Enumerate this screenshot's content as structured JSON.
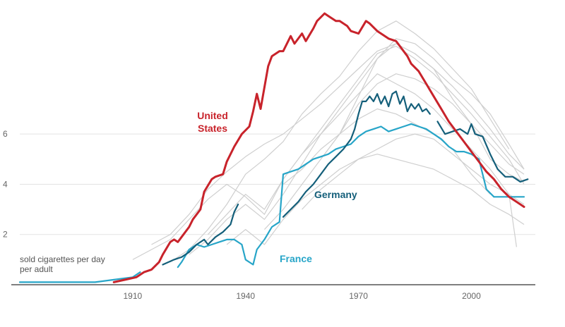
{
  "chart_data": {
    "type": "line",
    "title": "",
    "xlabel": "",
    "ylabel": "sold cigarettes per day per adult",
    "ylabel_lines": [
      "sold cigarettes per day",
      "per adult"
    ],
    "xlim": [
      1880,
      2017
    ],
    "ylim": [
      0,
      11.0
    ],
    "x_ticks": [
      1910,
      1940,
      1970,
      2000
    ],
    "x_tick_labels": [
      "1910",
      "1940",
      "1970",
      "2000"
    ],
    "y_ticks": [
      2,
      4,
      6
    ],
    "y_tick_labels": [
      "2",
      "4",
      "6"
    ],
    "grid": true,
    "colors": {
      "united_states": "#c8232b",
      "germany": "#145f7a",
      "france": "#27a5c8",
      "other_countries": "#cfcfcf",
      "grid": "#e3e3e3",
      "baseline": "#333333"
    },
    "series": [
      {
        "key": "united_states",
        "name": "United States",
        "label_lines": [
          "United",
          "States"
        ],
        "x": [
          1905,
          1908,
          1911,
          1913,
          1915,
          1917,
          1918,
          1920,
          1921,
          1922,
          1923,
          1925,
          1926,
          1928,
          1929,
          1931,
          1932,
          1934,
          1935,
          1937,
          1939,
          1941,
          1942,
          1943,
          1944,
          1946,
          1947,
          1949,
          1950,
          1952,
          1953,
          1955,
          1956,
          1958,
          1959,
          1961,
          1962,
          1964,
          1965,
          1967,
          1968,
          1970,
          1972,
          1973,
          1975,
          1976,
          1978,
          1980,
          1981,
          1983,
          1984,
          1986,
          1988,
          1990,
          1992,
          1994,
          1996,
          1998,
          2000,
          2002,
          2004,
          2006,
          2008,
          2010,
          2012,
          2014
        ],
        "values": [
          0.1,
          0.2,
          0.3,
          0.5,
          0.6,
          0.9,
          1.2,
          1.7,
          1.8,
          1.7,
          1.9,
          2.3,
          2.6,
          3.0,
          3.7,
          4.2,
          4.3,
          4.4,
          4.9,
          5.5,
          6.0,
          6.3,
          6.9,
          7.6,
          7.0,
          8.7,
          9.1,
          9.3,
          9.3,
          9.9,
          9.6,
          10.0,
          9.7,
          10.2,
          10.5,
          10.8,
          10.7,
          10.5,
          10.5,
          10.3,
          10.1,
          10.0,
          10.5,
          10.4,
          10.1,
          10.0,
          9.8,
          9.7,
          9.5,
          9.1,
          8.8,
          8.5,
          8.0,
          7.5,
          7.0,
          6.5,
          6.1,
          5.7,
          5.3,
          4.9,
          4.5,
          4.2,
          3.8,
          3.5,
          3.3,
          3.1
        ]
      },
      {
        "key": "germany",
        "name": "Germany",
        "label_lines": [
          "Germany"
        ],
        "segments": [
          {
            "x": [
              1918,
              1921,
              1923,
              1925,
              1927,
              1929,
              1930,
              1932,
              1934,
              1936,
              1937,
              1938
            ],
            "values": [
              0.8,
              1.0,
              1.1,
              1.3,
              1.6,
              1.8,
              1.6,
              1.9,
              2.1,
              2.4,
              2.9,
              3.2
            ]
          },
          {
            "x": [
              1950,
              1952,
              1954,
              1956,
              1958,
              1960,
              1962,
              1964,
              1966,
              1967,
              1968,
              1969,
              1970,
              1971,
              1972,
              1973,
              1974,
              1975,
              1976,
              1977,
              1978,
              1979,
              1980,
              1981,
              1982,
              1983,
              1984,
              1985,
              1986,
              1987,
              1988,
              1989
            ],
            "values": [
              2.7,
              3.0,
              3.3,
              3.7,
              4.0,
              4.4,
              4.8,
              5.1,
              5.4,
              5.6,
              5.8,
              6.2,
              6.8,
              7.3,
              7.3,
              7.5,
              7.3,
              7.6,
              7.2,
              7.5,
              7.1,
              7.6,
              7.7,
              7.2,
              7.5,
              6.9,
              7.2,
              7.0,
              7.2,
              6.9,
              7.0,
              6.8
            ]
          },
          {
            "x": [
              1991,
              1993,
              1995,
              1997,
              1999,
              2000,
              2001,
              2003,
              2005,
              2007,
              2009,
              2011,
              2013,
              2015
            ],
            "values": [
              6.5,
              6.0,
              6.1,
              6.2,
              6.0,
              6.4,
              6.0,
              5.9,
              5.2,
              4.6,
              4.3,
              4.3,
              4.1,
              4.2
            ]
          }
        ]
      },
      {
        "key": "france",
        "name": "France",
        "label_lines": [
          "France"
        ],
        "segments": [
          {
            "x": [
              1880,
              1900,
              1905,
              1910,
              1912
            ],
            "values": [
              0.1,
              0.1,
              0.2,
              0.3,
              0.5
            ]
          },
          {
            "x": [
              1922,
              1923,
              1925,
              1927,
              1929,
              1931,
              1933,
              1935,
              1937,
              1939,
              1940,
              1942,
              1943,
              1945,
              1947,
              1949,
              1950,
              1952,
              1954,
              1956,
              1958,
              1960,
              1962,
              1964,
              1966,
              1968,
              1970,
              1972,
              1974,
              1976,
              1978,
              1980,
              1982,
              1984,
              1986,
              1988,
              1990,
              1992,
              1994,
              1996,
              1998,
              2000,
              2002,
              2004,
              2006,
              2008,
              2010,
              2012,
              2014
            ],
            "values": [
              0.7,
              0.9,
              1.4,
              1.6,
              1.5,
              1.6,
              1.7,
              1.8,
              1.8,
              1.6,
              1.0,
              0.8,
              1.4,
              1.8,
              2.3,
              2.5,
              4.4,
              4.5,
              4.6,
              4.8,
              5.0,
              5.1,
              5.2,
              5.4,
              5.5,
              5.6,
              5.9,
              6.1,
              6.2,
              6.3,
              6.1,
              6.2,
              6.3,
              6.4,
              6.3,
              6.2,
              6.0,
              5.8,
              5.5,
              5.3,
              5.3,
              5.2,
              5.0,
              3.8,
              3.5,
              3.5,
              3.5,
              3.5,
              3.5
            ]
          }
        ]
      }
    ],
    "background_series": [
      {
        "x": [
          1915,
          1920,
          1925,
          1930,
          1935,
          1940,
          1945,
          1950,
          1955,
          1960,
          1965,
          1970,
          1975,
          1980,
          1985,
          1990,
          1995,
          2000,
          2005,
          2010,
          2014
        ],
        "values": [
          1.6,
          2.0,
          2.8,
          3.8,
          4.5,
          5.1,
          5.6,
          6.0,
          6.6,
          7.2,
          7.9,
          8.6,
          9.3,
          9.6,
          9.2,
          8.6,
          7.9,
          7.1,
          6.2,
          5.2,
          4.6
        ]
      },
      {
        "x": [
          1910,
          1915,
          1920,
          1925,
          1930,
          1935,
          1940,
          1945,
          1950,
          1955,
          1960,
          1965,
          1970,
          1975,
          1980,
          1985,
          1990,
          1995,
          2000,
          2005,
          2010,
          2014
        ],
        "values": [
          1.0,
          1.4,
          1.8,
          2.6,
          3.4,
          4.0,
          3.5,
          2.8,
          4.2,
          5.2,
          6.2,
          7.2,
          8.2,
          9.2,
          9.5,
          9.0,
          8.4,
          7.6,
          6.8,
          5.9,
          5.0,
          4.0
        ]
      },
      {
        "x": [
          1920,
          1925,
          1930,
          1935,
          1940,
          1945,
          1950,
          1955,
          1960,
          1965,
          1970,
          1975,
          1980,
          1985,
          1990,
          1995,
          2000,
          2005,
          2010
        ],
        "values": [
          0.9,
          1.4,
          2.2,
          3.2,
          4.4,
          5.0,
          5.7,
          6.8,
          7.6,
          8.3,
          9.3,
          10.1,
          10.5,
          10.0,
          9.4,
          8.6,
          7.8,
          6.6,
          5.4
        ]
      },
      {
        "x": [
          1925,
          1930,
          1935,
          1940,
          1945,
          1950,
          1955,
          1960,
          1965,
          1970,
          1975,
          1980,
          1985,
          1990,
          1995,
          2000,
          2005,
          2010,
          2014
        ],
        "values": [
          1.2,
          1.8,
          2.6,
          3.2,
          2.6,
          3.6,
          4.8,
          6.0,
          7.0,
          8.0,
          9.0,
          9.6,
          9.2,
          8.6,
          7.4,
          6.4,
          5.0,
          4.4,
          4.1
        ]
      },
      {
        "x": [
          1930,
          1935,
          1940,
          1945,
          1950,
          1955,
          1960,
          1965,
          1970,
          1975,
          1980,
          1985,
          1990,
          1995,
          2000,
          2005,
          2010,
          2012
        ],
        "values": [
          2.0,
          2.8,
          3.6,
          3.0,
          4.2,
          5.2,
          6.0,
          6.8,
          7.6,
          8.4,
          8.0,
          7.6,
          7.0,
          6.2,
          5.4,
          4.6,
          3.6,
          1.5
        ]
      },
      {
        "x": [
          1935,
          1940,
          1945,
          1950,
          1955,
          1960,
          1965,
          1970,
          1975,
          1980,
          1985,
          1990,
          1995,
          2000,
          2005,
          2010,
          2014
        ],
        "values": [
          1.6,
          2.2,
          1.6,
          2.6,
          3.4,
          4.0,
          4.6,
          5.0,
          5.2,
          5.0,
          4.8,
          4.6,
          4.2,
          3.8,
          3.2,
          2.8,
          2.4
        ]
      },
      {
        "x": [
          1945,
          1950,
          1955,
          1960,
          1965,
          1970,
          1975,
          1980,
          1985,
          1990,
          1995,
          2000,
          2005,
          2010,
          2014
        ],
        "values": [
          2.2,
          3.0,
          4.0,
          5.0,
          6.0,
          7.2,
          8.0,
          8.4,
          8.2,
          7.8,
          7.2,
          6.4,
          5.6,
          4.8,
          4.4
        ]
      },
      {
        "x": [
          1950,
          1955,
          1960,
          1965,
          1970,
          1975,
          1980,
          1985,
          1990,
          1995,
          2000,
          2005
        ],
        "values": [
          4.0,
          4.6,
          5.4,
          6.0,
          6.6,
          7.0,
          6.8,
          6.4,
          6.0,
          5.4,
          4.4,
          3.6
        ]
      },
      {
        "x": [
          1955,
          1960,
          1965,
          1970,
          1975,
          1980,
          1985,
          1990,
          1995,
          2000,
          2005,
          2010,
          2014
        ],
        "values": [
          3.0,
          3.8,
          4.4,
          5.0,
          5.4,
          5.8,
          6.0,
          5.8,
          5.2,
          4.6,
          4.0,
          3.6,
          3.2
        ]
      },
      {
        "x": [
          1960,
          1965,
          1970,
          1975,
          1980,
          1985,
          1990,
          1995,
          2000,
          2005,
          2010,
          2014
        ],
        "values": [
          5.0,
          6.0,
          7.5,
          9.0,
          9.8,
          9.6,
          9.0,
          8.2,
          7.6,
          6.8,
          5.6,
          4.6
        ]
      }
    ],
    "note": [
      "sold cigarettes per day",
      "per adult"
    ]
  }
}
